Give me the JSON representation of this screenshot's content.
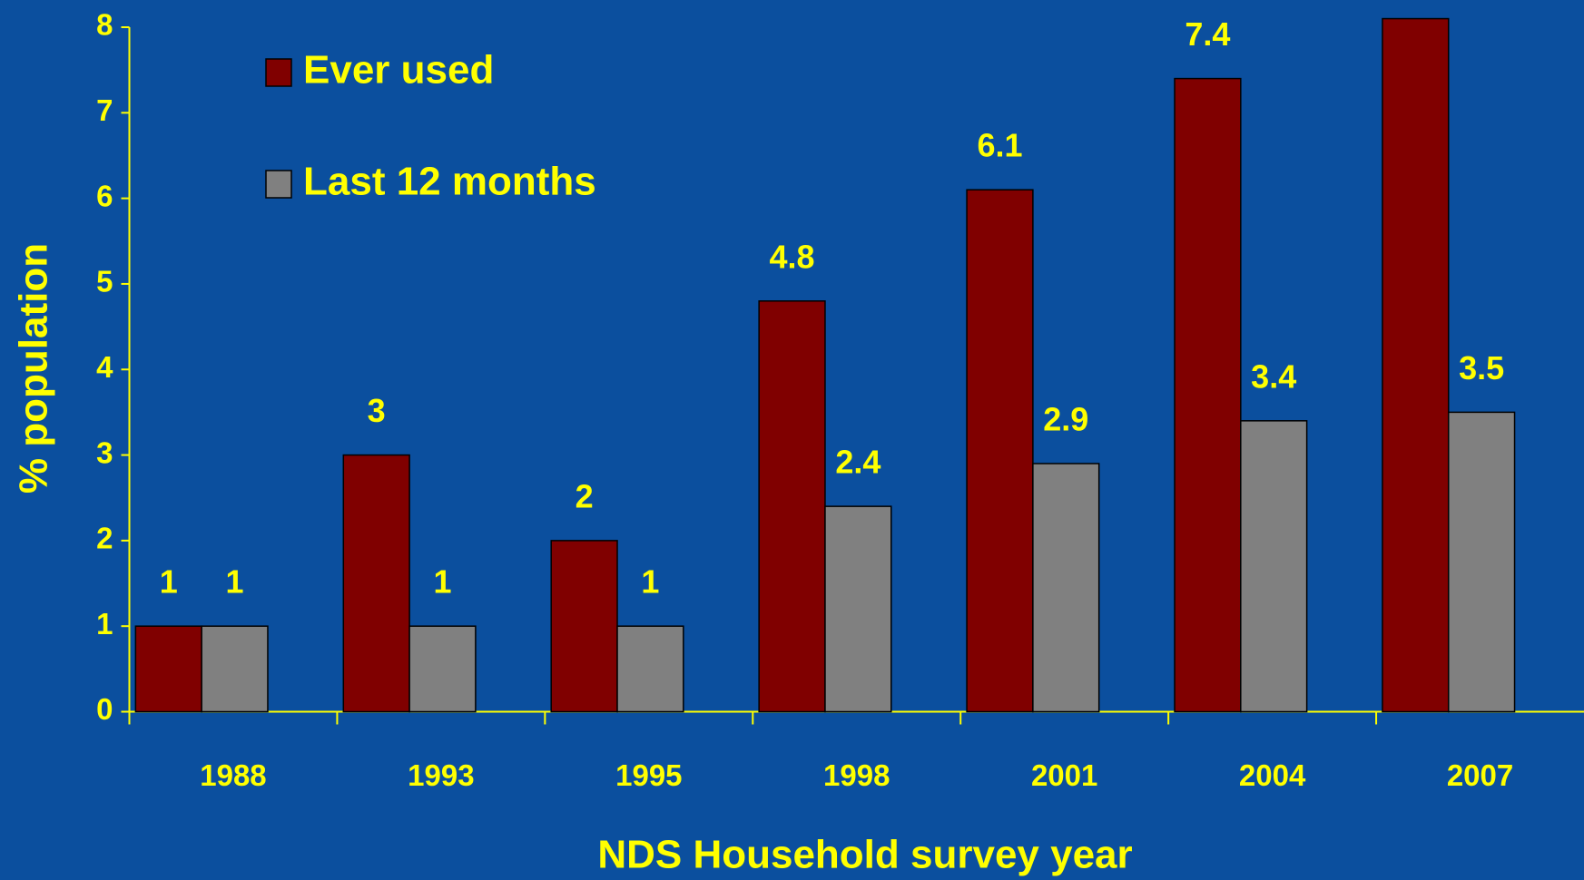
{
  "chart_data": {
    "type": "bar",
    "x_label": "NDS Household survey year",
    "y_label": "% population",
    "categories": [
      "1988",
      "1993",
      "1995",
      "1998",
      "2001",
      "2004",
      "2007"
    ],
    "series": [
      {
        "name": "Ever used",
        "color": "#800000",
        "values": [
          1,
          3,
          2,
          4.8,
          6.1,
          7.4,
          8.1
        ],
        "value_labels": [
          "1",
          "3",
          "2",
          "4.8",
          "6.1",
          "7.4",
          null
        ]
      },
      {
        "name": "Last 12 months",
        "color": "#808080",
        "values": [
          1,
          1,
          1,
          2.4,
          2.9,
          3.4,
          3.5
        ]
      }
    ],
    "ylim": [
      0,
      8
    ],
    "yticks": [
      0,
      1,
      2,
      3,
      4,
      5,
      6,
      7,
      8
    ],
    "legend": "upper left",
    "grid": false,
    "axis_color": "#ffff00",
    "background": "#0b4f9e"
  }
}
